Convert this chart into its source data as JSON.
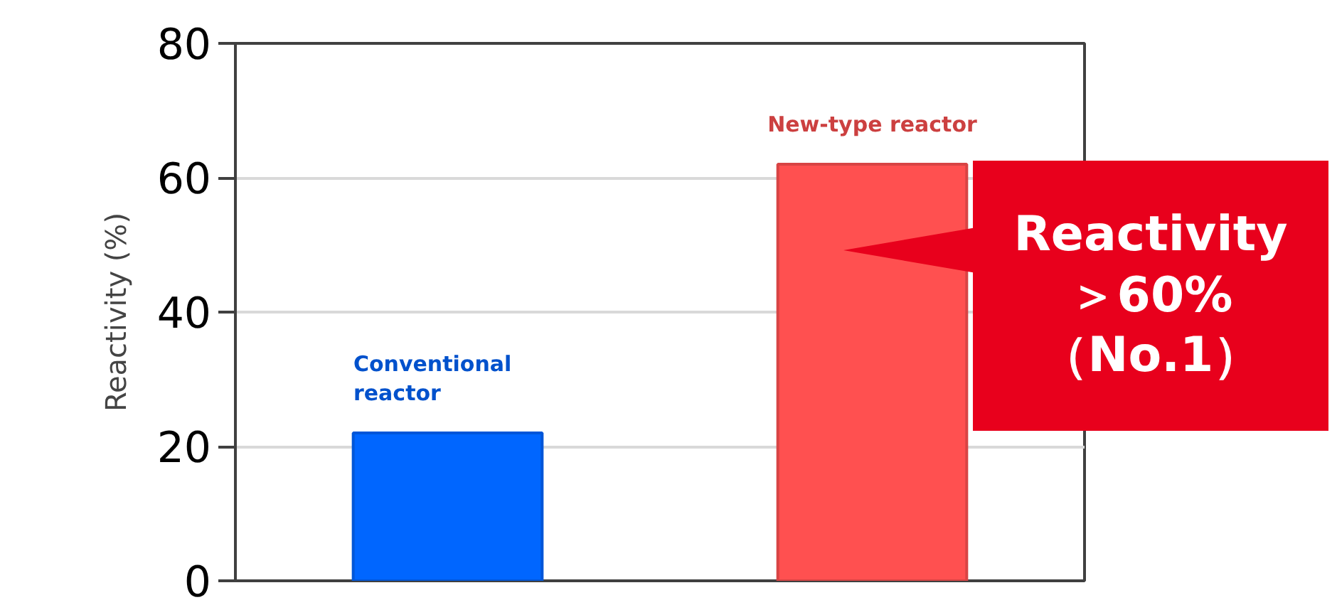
{
  "chart_data": {
    "type": "bar",
    "ylabel": "Reactivity (%)",
    "categories": [
      "Conventional\nreactor",
      "New-type reactor"
    ],
    "values": [
      22,
      62
    ],
    "colors": [
      "#0066ff",
      "#ff5050"
    ],
    "ylim": [
      0,
      80
    ],
    "yticks": [
      0,
      20,
      40,
      60,
      80
    ],
    "grid": "y",
    "annotations": [
      "Reactivity\n＞60%\n（No.1）"
    ]
  }
}
